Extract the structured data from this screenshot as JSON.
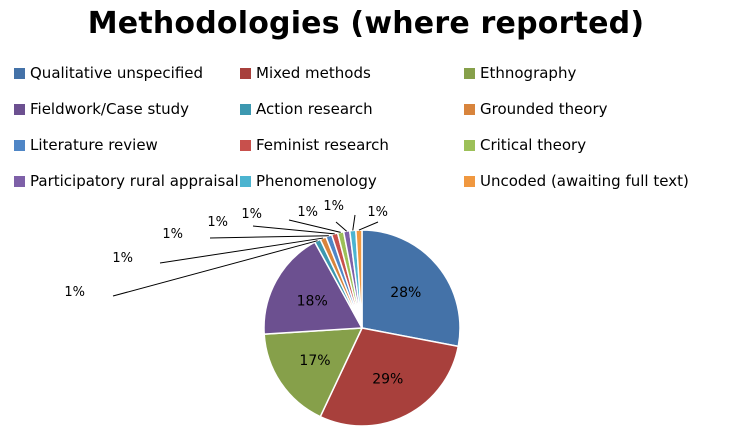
{
  "chart_data": {
    "type": "pie",
    "title": "Methodologies (where reported)",
    "legend_position": "top",
    "series": [
      {
        "name": "Qualitative unspecified",
        "label": "28%",
        "value": 28,
        "color": "#4472A8"
      },
      {
        "name": "Mixed methods",
        "label": "29%",
        "value": 29,
        "color": "#A8403C"
      },
      {
        "name": "Ethnography",
        "label": "17%",
        "value": 17,
        "color": "#86A04A"
      },
      {
        "name": "Fieldwork/Case study",
        "label": "18%",
        "value": 18,
        "color": "#6C5090"
      },
      {
        "name": "Action research",
        "label": "1%",
        "value": 1,
        "color": "#3C98B0"
      },
      {
        "name": "Grounded theory",
        "label": "1%",
        "value": 1,
        "color": "#D8843C"
      },
      {
        "name": "Literature review",
        "label": "1%",
        "value": 1,
        "color": "#4F86C6"
      },
      {
        "name": "Feminist research",
        "label": "1%",
        "value": 1,
        "color": "#C8504C"
      },
      {
        "name": "Critical theory",
        "label": "1%",
        "value": 1,
        "color": "#9CC058"
      },
      {
        "name": "Participatory rural appraisal",
        "label": "1%",
        "value": 1,
        "color": "#7E60A8"
      },
      {
        "name": "Phenomenology",
        "label": "1%",
        "value": 1,
        "color": "#4CB4D0"
      },
      {
        "name": "Uncoded (awaiting full text)",
        "label": "1%",
        "value": 1,
        "color": "#F09840"
      }
    ]
  }
}
